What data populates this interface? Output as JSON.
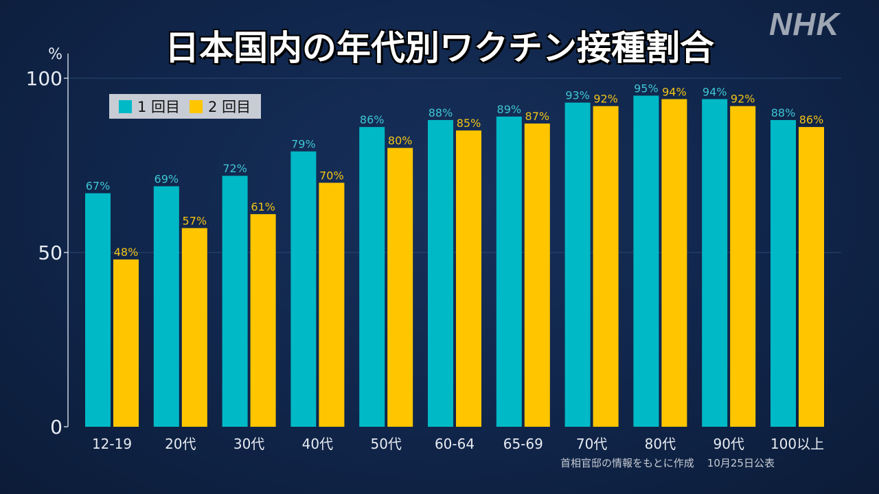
{
  "logo": "NHK",
  "chart_data": {
    "type": "bar",
    "title": "日本国内の年代別ワクチン接種割合",
    "ylabel": "%",
    "ylim": [
      0,
      100
    ],
    "yticks": [
      0,
      50,
      100
    ],
    "grid": true,
    "legend_position": "top-left",
    "categories": [
      "12-19",
      "20代",
      "30代",
      "40代",
      "50代",
      "60-64",
      "65-69",
      "70代",
      "80代",
      "90代",
      "100以上"
    ],
    "series": [
      {
        "name": "1 回目",
        "color": "#00b9c6",
        "label_color": "#3fc6d4",
        "values": [
          67,
          69,
          72,
          79,
          86,
          88,
          89,
          93,
          95,
          94,
          88
        ]
      },
      {
        "name": "2 回目",
        "color": "#ffc600",
        "label_color": "#f2c416",
        "values": [
          48,
          57,
          61,
          70,
          80,
          85,
          87,
          92,
          94,
          92,
          86
        ]
      }
    ],
    "source": "首相官邸の情報をもとに作成",
    "date": "10月25日公表"
  }
}
